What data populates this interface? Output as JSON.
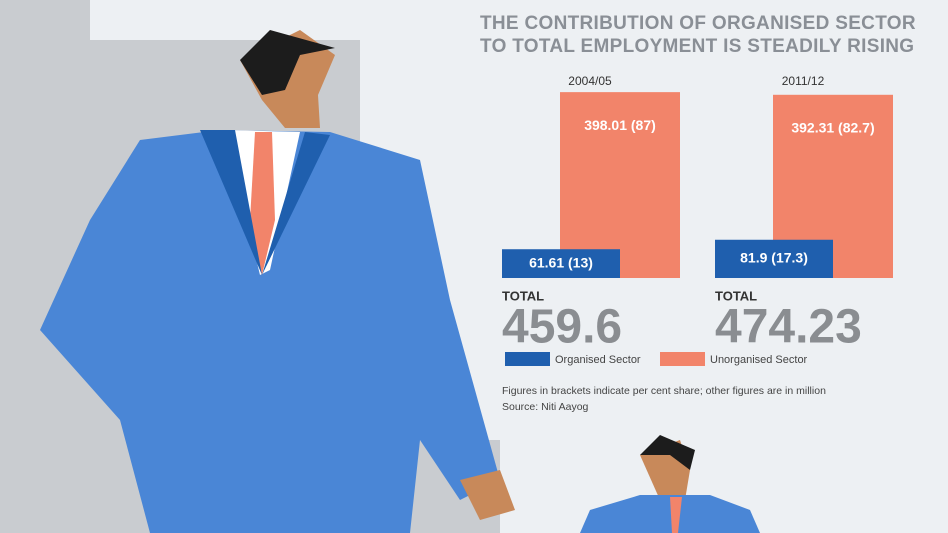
{
  "chart_data": {
    "type": "bar",
    "title": "THE CONTRIBUTION OF ORGANISED SECTOR TO TOTAL EMPLOYMENT IS STEADILY RISING",
    "categories": [
      "2004/05",
      "2011/12"
    ],
    "series": [
      {
        "name": "Organised Sector",
        "color": "#1f5fae",
        "values": [
          61.61,
          81.9
        ],
        "value_labels": [
          "61.61 (13)",
          "81.9 (17.3)"
        ]
      },
      {
        "name": "Unorganised Sector",
        "color": "#f2846a",
        "values": [
          398.01,
          392.31
        ],
        "value_labels": [
          "398.01 (87)",
          "392.31 (82.7)"
        ]
      }
    ],
    "total_label": "TOTAL",
    "totals": [
      459.6,
      474.23
    ],
    "note": "Figures in brackets indicate per cent share; other figures are in million",
    "source": "Source: Niti Aayog"
  }
}
